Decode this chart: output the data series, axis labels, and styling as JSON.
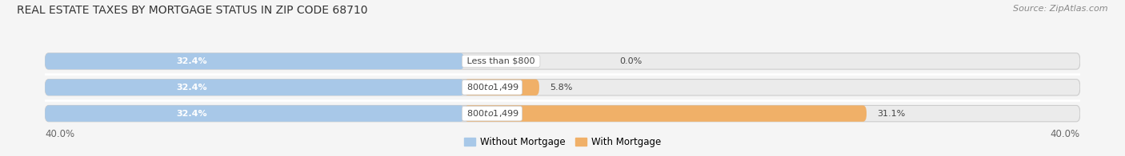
{
  "title": "REAL ESTATE TAXES BY MORTGAGE STATUS IN ZIP CODE 68710",
  "source": "Source: ZipAtlas.com",
  "bars": [
    {
      "label": "Less than $800",
      "without_mortgage": 32.4,
      "with_mortgage": 0.0
    },
    {
      "label": "$800 to $1,499",
      "without_mortgage": 32.4,
      "with_mortgage": 5.8
    },
    {
      "label": "$800 to $1,499",
      "without_mortgage": 32.4,
      "with_mortgage": 31.1
    }
  ],
  "x_left_label": "40.0%",
  "x_right_label": "40.0%",
  "without_mortgage_color": "#a8c8e8",
  "with_mortgage_color": "#f0b068",
  "bar_bg_color": "#e0e0e0",
  "bar_bg_color2": "#ebebeb",
  "xlim_left": -40,
  "xlim_right": 40,
  "legend_without": "Without Mortgage",
  "legend_with": "With Mortgage",
  "title_fontsize": 10,
  "source_fontsize": 8,
  "tick_fontsize": 8.5,
  "bar_label_fontsize": 8,
  "category_fontsize": 8,
  "bar_height": 0.62,
  "bg_color": "#f5f5f5"
}
